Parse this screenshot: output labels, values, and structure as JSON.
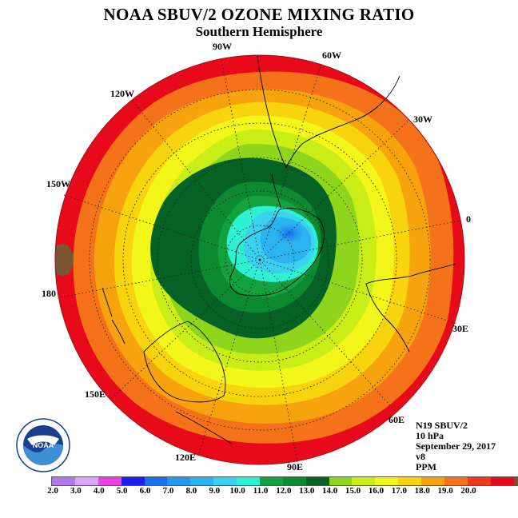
{
  "title": "NOAA SBUV/2 OZONE MIXING RATIO",
  "subtitle": "Southern Hemisphere",
  "longitude_labels": [
    "90W",
    "60W",
    "30W",
    "0",
    "30E",
    "60E",
    "90E",
    "120E",
    "150E",
    "180",
    "150W",
    "120W"
  ],
  "info": {
    "satellite": "N19 SBUV/2",
    "level": "10 hPa",
    "date": "September 29, 2017",
    "version": "v8",
    "units": "PPM"
  },
  "logo_text": "NOAA",
  "colorbar": {
    "labels": [
      "2.0",
      "3.0",
      "4.0",
      "5.0",
      "6.0",
      "7.0",
      "8.0",
      "9.0",
      "10.0",
      "11.0",
      "12.0",
      "13.0",
      "14.0",
      "15.0",
      "16.0",
      "17.0",
      "18.0",
      "19.0",
      "20.0"
    ],
    "colors": [
      "#b07ae8",
      "#d9a6f5",
      "#ee3ee6",
      "#1c1cf5",
      "#1a6ff0",
      "#2298ee",
      "#2bb4f0",
      "#3ad2f0",
      "#2ef0d2",
      "#13a23d",
      "#0b8a2f",
      "#066127",
      "#8ed51c",
      "#c9ed16",
      "#f3f719",
      "#f8d40e",
      "#f7a30e",
      "#f4731a",
      "#f03a1a",
      "#e8091a",
      "#7b5531"
    ]
  }
}
